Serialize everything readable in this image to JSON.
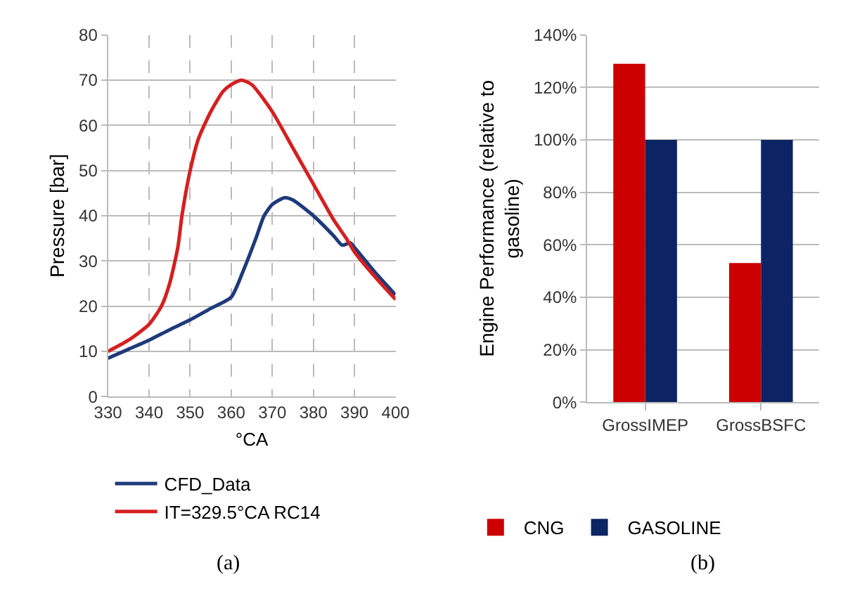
{
  "chart_data": [
    {
      "type": "line",
      "xlabel": "°CA",
      "ylabel": "Pressure [bar]",
      "xlim": [
        330,
        400
      ],
      "xticks": [
        330,
        340,
        350,
        360,
        370,
        380,
        390,
        400
      ],
      "ylim": [
        0,
        80
      ],
      "yticks": [
        0,
        10,
        20,
        30,
        40,
        50,
        60,
        70,
        80
      ],
      "grid": true,
      "legend": "bottom",
      "marker": "none",
      "line_style": "solid",
      "annotations": [
        "(a)"
      ],
      "series": [
        {
          "name": "CFD_Data",
          "color": "#1f3a7a",
          "x": [
            330,
            335,
            340,
            345,
            350,
            355,
            360,
            363,
            366,
            368,
            370,
            373,
            375,
            380,
            385,
            387,
            389,
            390,
            395,
            400
          ],
          "values": [
            8.5,
            10.5,
            12.5,
            14.8,
            17,
            19.5,
            22,
            28,
            35,
            40,
            42.5,
            44,
            43.5,
            40,
            35.5,
            33.5,
            34,
            33,
            27.5,
            22.5
          ]
        },
        {
          "name": "IT=329.5°CA RC14",
          "color": "#d42020",
          "x": [
            330,
            335,
            340,
            343,
            345,
            347,
            348,
            350,
            352,
            355,
            358,
            360,
            362.5,
            365,
            370,
            375,
            380,
            385,
            388,
            390,
            395,
            400
          ],
          "values": [
            10,
            12.5,
            16,
            20,
            25,
            33,
            40,
            50,
            57,
            63,
            67.5,
            69,
            70,
            69,
            63,
            55,
            47,
            39,
            35,
            32,
            26.5,
            21.5
          ]
        }
      ]
    },
    {
      "type": "bar",
      "ylabel": "Engine Performance (relative to gasoline)",
      "categories": [
        "GrossIMEP",
        "GrossBSFC"
      ],
      "ylim": [
        0,
        140
      ],
      "yticks": [
        {
          "value": 0,
          "label": "0%"
        },
        {
          "value": 20,
          "label": "20%"
        },
        {
          "value": 40,
          "label": "40%"
        },
        {
          "value": 60,
          "label": "60%"
        },
        {
          "value": 80,
          "label": "80%"
        },
        {
          "value": 100,
          "label": "100%"
        },
        {
          "value": 120,
          "label": "120%"
        },
        {
          "value": 140,
          "label": "140%"
        }
      ],
      "grid": "y",
      "legend": "bottom",
      "annotations": [
        "(b)"
      ],
      "series": [
        {
          "name": "CNG",
          "color": "#cc0000",
          "values": [
            129,
            53
          ]
        },
        {
          "name": "GASOLINE",
          "color": "#0c2463",
          "values": [
            100,
            100
          ]
        }
      ]
    }
  ]
}
